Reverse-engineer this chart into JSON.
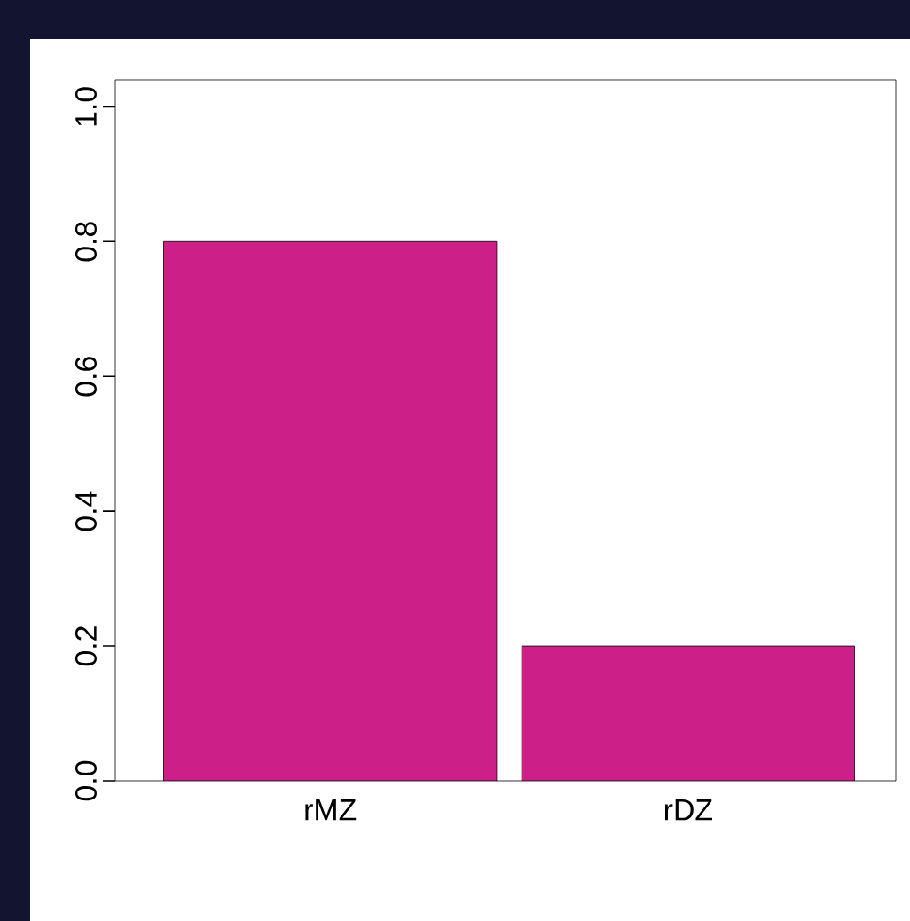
{
  "chart_data": {
    "type": "bar",
    "categories": [
      "rMZ",
      "rDZ"
    ],
    "values": [
      0.8,
      0.2
    ],
    "color": "#cc1f88",
    "ylim": [
      0,
      1.04
    ],
    "yticks": [
      {
        "value": 0,
        "label": "0.0"
      },
      {
        "value": 0.2,
        "label": "0.2"
      },
      {
        "value": 0.4,
        "label": "0.4"
      },
      {
        "value": 0.6,
        "label": "0.6"
      },
      {
        "value": 0.8,
        "label": "0.8"
      },
      {
        "value": 1.0,
        "label": "1.0"
      }
    ]
  }
}
